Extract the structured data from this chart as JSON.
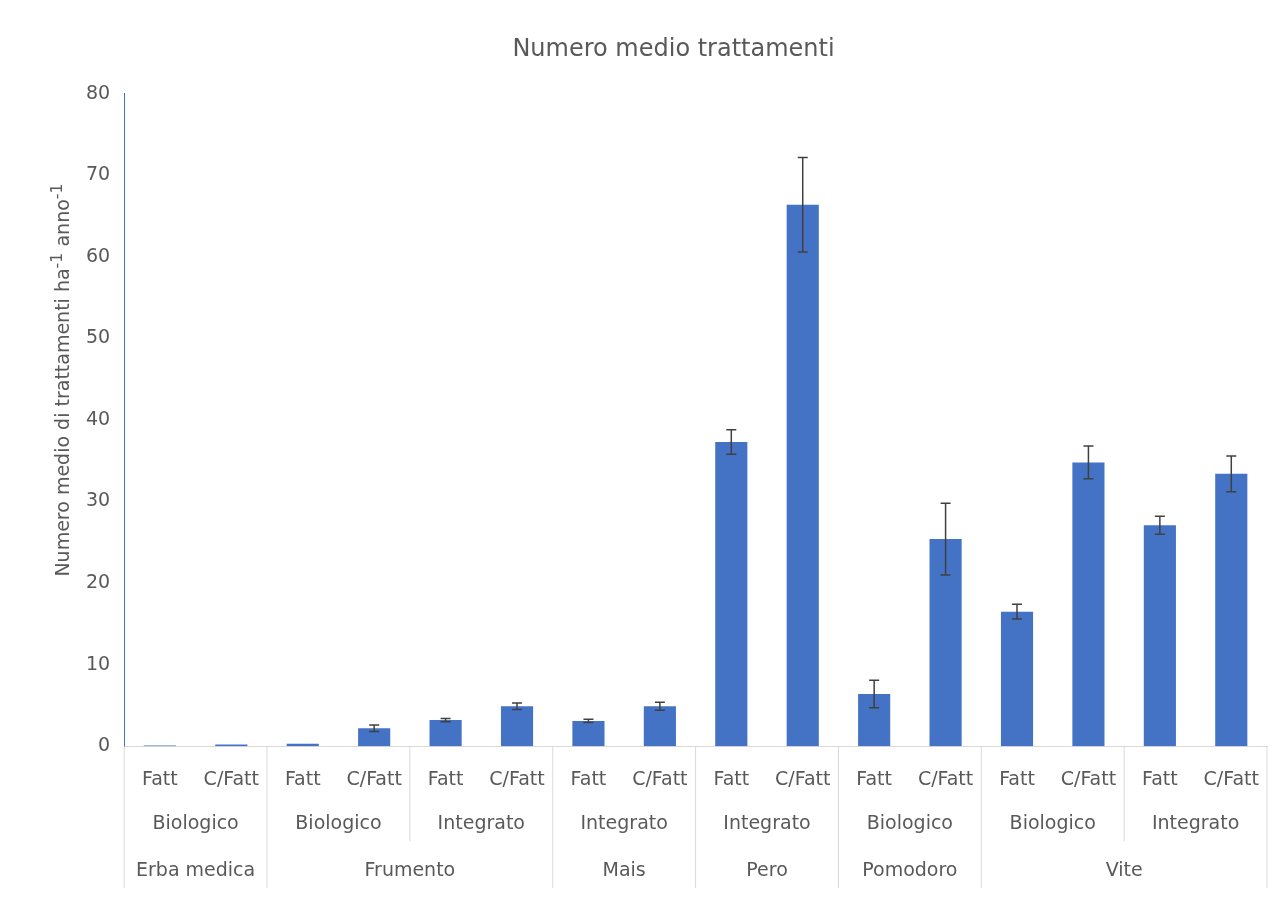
{
  "chart_data": {
    "type": "bar",
    "title": "Numero medio trattamenti",
    "ylabel": "Numero medio di trattamenti ha$^{-1}$ anno$^{-1}$",
    "categories": [
      "Fatt",
      "C/Fatt",
      "Fatt",
      "C/Fatt",
      "Fatt",
      "C/Fatt",
      "Fatt",
      "C/Fatt",
      "Fatt",
      "C/Fatt",
      "Fatt",
      "C/Fatt",
      "Fatt",
      "C/Fatt",
      "Fatt",
      "C/Fatt"
    ],
    "values": [
      0.1,
      0.2,
      0.3,
      2.2,
      3.2,
      4.9,
      3.1,
      4.9,
      37.3,
      66.4,
      6.4,
      25.4,
      16.5,
      34.8,
      27.1,
      33.4
    ],
    "errors": [
      null,
      null,
      null,
      0.4,
      0.2,
      0.4,
      0.2,
      0.5,
      1.5,
      5.8,
      1.7,
      4.4,
      0.9,
      2.0,
      1.1,
      2.2
    ],
    "color": "#4472c4",
    "ylim": [
      0,
      80
    ],
    "yticks": [
      0,
      10,
      20,
      30,
      40,
      50,
      60,
      70,
      80
    ],
    "grid": false,
    "annotations": [
      "Biologico",
      "Biologico",
      "Integrato",
      "Integrato",
      "Integrato",
      "Biologico",
      "Biologico",
      "Integrato",
      "Erba medica",
      "Frumento",
      "Mais",
      "Pero",
      "Pomodoro",
      "Vite"
    ]
  }
}
